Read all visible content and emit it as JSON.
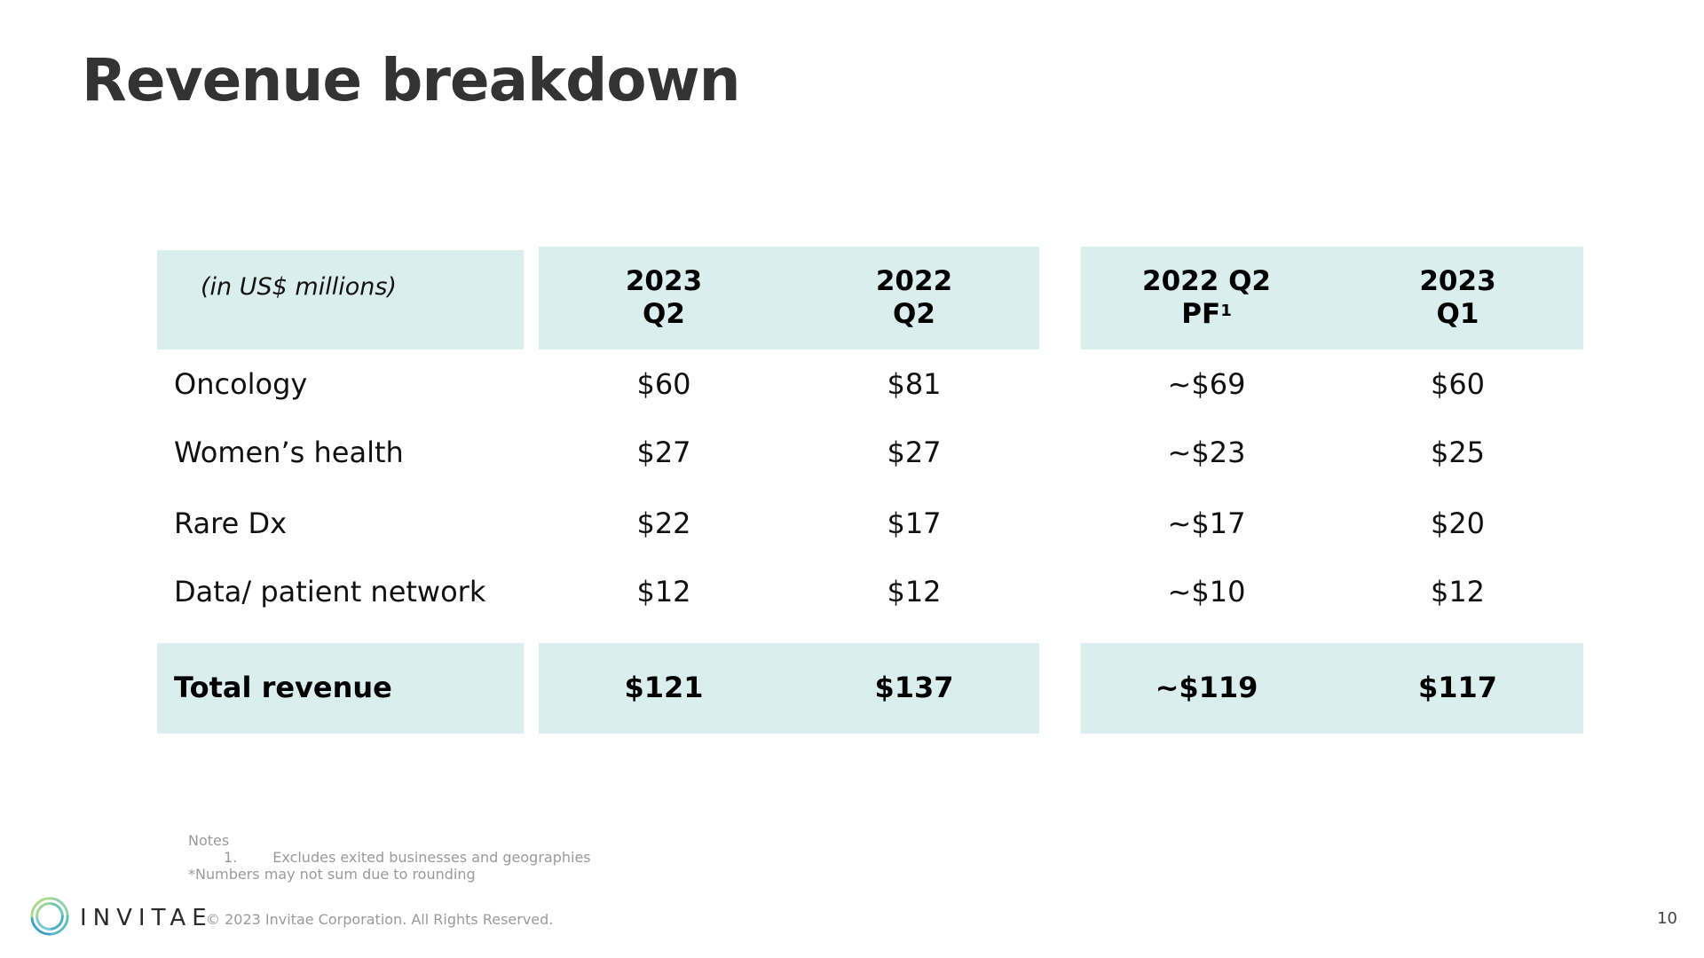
{
  "title": "Revenue breakdown",
  "table": {
    "unit_label": "(in US$ millions)",
    "columns": [
      {
        "line1": "2023",
        "line2": "Q2",
        "sup": ""
      },
      {
        "line1": "2022",
        "line2": "Q2",
        "sup": ""
      },
      {
        "line1": "2022 Q2",
        "line2": "PF",
        "sup": "1"
      },
      {
        "line1": "2023",
        "line2": "Q1",
        "sup": ""
      }
    ],
    "rows": [
      {
        "label": "Oncology",
        "values": [
          "$60",
          "$81",
          "~$69",
          "$60"
        ]
      },
      {
        "label": "Women’s health",
        "values": [
          "$27",
          "$27",
          "~$23",
          "$25"
        ]
      },
      {
        "label": "Rare Dx",
        "values": [
          "$22",
          "$17",
          "~$17",
          "$20"
        ]
      },
      {
        "label": "Data/ patient network",
        "values": [
          "$12",
          "$12",
          "~$10",
          "$12"
        ]
      }
    ],
    "total": {
      "label": "Total revenue",
      "values": [
        "$121",
        "$137",
        "~$119",
        "$117"
      ]
    },
    "band_color": "#daeeee"
  },
  "notes": {
    "heading": "Notes",
    "items": [
      {
        "number": "1.",
        "text": "Excludes exited businesses and geographies"
      }
    ],
    "footnote": "*Numbers may not sum due to rounding"
  },
  "footer": {
    "brand": "INVITAE",
    "logo_icon": "invitae-swirl-logo-icon",
    "copyright": "© 2023 Invitae Corporation. All Rights Reserved.",
    "page_number": "10"
  }
}
